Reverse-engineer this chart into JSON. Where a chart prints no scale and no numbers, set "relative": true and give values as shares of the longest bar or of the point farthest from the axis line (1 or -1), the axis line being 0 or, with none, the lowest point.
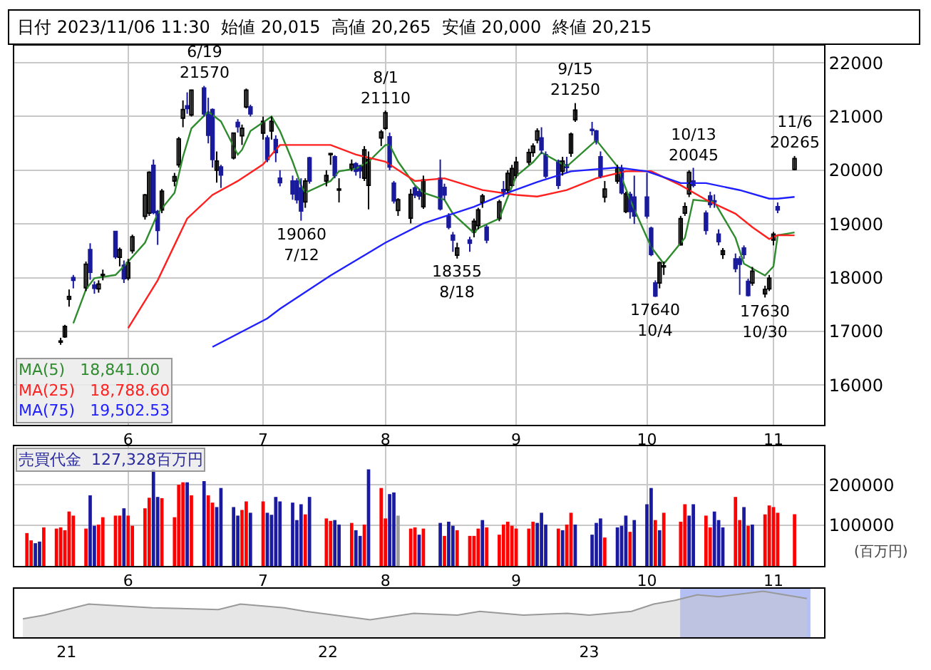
{
  "chart_data": [
    {
      "type": "candlestick",
      "title": "日付 2023/11/06 11:30  始値 20,015  高値 20,265  安値 20,000  終値 20,215",
      "x": [
        "2023-05-16",
        "2023-05-17",
        "2023-05-18",
        "2023-05-19",
        "2023-05-22",
        "2023-05-23",
        "2023-05-24",
        "2023-05-25",
        "2023-05-26",
        "2023-05-29",
        "2023-05-30",
        "2023-05-31",
        "2023-06-01",
        "2023-06-02",
        "2023-06-05",
        "2023-06-06",
        "2023-06-07",
        "2023-06-08",
        "2023-06-09",
        "2023-06-12",
        "2023-06-13",
        "2023-06-14",
        "2023-06-15",
        "2023-06-16",
        "2023-06-19",
        "2023-06-20",
        "2023-06-21",
        "2023-06-22",
        "2023-06-23",
        "2023-06-26",
        "2023-06-27",
        "2023-06-28",
        "2023-06-29",
        "2023-06-30",
        "2023-07-03",
        "2023-07-04",
        "2023-07-05",
        "2023-07-06",
        "2023-07-07",
        "2023-07-10",
        "2023-07-11",
        "2023-07-12",
        "2023-07-13",
        "2023-07-14",
        "2023-07-18",
        "2023-07-19",
        "2023-07-20",
        "2023-07-21",
        "2023-07-24",
        "2023-07-25",
        "2023-07-26",
        "2023-07-27",
        "2023-07-28",
        "2023-07-31",
        "2023-08-01",
        "2023-08-02",
        "2023-08-03",
        "2023-08-04",
        "2023-08-07",
        "2023-08-08",
        "2023-08-09",
        "2023-08-10",
        "2023-08-14",
        "2023-08-15",
        "2023-08-16",
        "2023-08-17",
        "2023-08-18",
        "2023-08-21",
        "2023-08-22",
        "2023-08-23",
        "2023-08-24",
        "2023-08-25",
        "2023-08-28",
        "2023-08-29",
        "2023-08-30",
        "2023-08-31",
        "2023-09-01",
        "2023-09-04",
        "2023-09-05",
        "2023-09-06",
        "2023-09-07",
        "2023-09-08",
        "2023-09-11",
        "2023-09-12",
        "2023-09-13",
        "2023-09-14",
        "2023-09-15",
        "2023-09-19",
        "2023-09-20",
        "2023-09-21",
        "2023-09-22",
        "2023-09-25",
        "2023-09-26",
        "2023-09-27",
        "2023-09-28",
        "2023-09-29",
        "2023-10-02",
        "2023-10-03",
        "2023-10-04",
        "2023-10-05",
        "2023-10-06",
        "2023-10-10",
        "2023-10-11",
        "2023-10-12",
        "2023-10-13",
        "2023-10-16",
        "2023-10-17",
        "2023-10-18",
        "2023-10-19",
        "2023-10-20",
        "2023-10-23",
        "2023-10-24",
        "2023-10-25",
        "2023-10-26",
        "2023-10-27",
        "2023-10-30",
        "2023-10-31",
        "2023-11-01",
        "2023-11-02",
        "2023-11-06"
      ],
      "ohlc": [
        [
          16800,
          16880,
          16750,
          16820
        ],
        [
          16900,
          17120,
          16880,
          17090
        ],
        [
          17600,
          17780,
          17460,
          17650
        ],
        [
          18000,
          18050,
          17800,
          17950
        ],
        [
          17810,
          18300,
          17750,
          18250
        ],
        [
          18520,
          18640,
          17960,
          18100
        ],
        [
          17860,
          17930,
          17700,
          17800
        ],
        [
          17790,
          17950,
          17720,
          17880
        ],
        [
          18040,
          18150,
          17950,
          18060
        ],
        [
          18860,
          18870,
          18350,
          18390
        ],
        [
          18380,
          18560,
          18210,
          18520
        ],
        [
          18230,
          18320,
          17900,
          17980
        ],
        [
          17990,
          18350,
          17950,
          18280
        ],
        [
          18500,
          18800,
          18450,
          18760
        ],
        [
          19140,
          19560,
          19080,
          19540
        ],
        [
          19200,
          19980,
          19150,
          19960
        ],
        [
          20090,
          20200,
          19180,
          19210
        ],
        [
          19230,
          19260,
          18610,
          18880
        ],
        [
          19260,
          19650,
          19200,
          19610
        ],
        [
          19800,
          19950,
          19700,
          19880
        ],
        [
          20100,
          20620,
          20050,
          20580
        ],
        [
          20970,
          21300,
          20800,
          21130
        ],
        [
          21200,
          21450,
          21050,
          21150
        ],
        [
          21030,
          21500,
          21000,
          21490
        ],
        [
          21530,
          21570,
          21000,
          21050
        ],
        [
          21040,
          21350,
          20500,
          20650
        ],
        [
          21130,
          21150,
          20050,
          20200
        ],
        [
          20000,
          20350,
          19770,
          20170
        ],
        [
          20060,
          20100,
          19670,
          19910
        ],
        [
          20230,
          20700,
          20200,
          20690
        ],
        [
          20890,
          20950,
          20700,
          20810
        ],
        [
          20640,
          20850,
          20470,
          20780
        ],
        [
          21180,
          21520,
          21150,
          21490
        ],
        [
          21180,
          21220,
          21000,
          21050
        ],
        [
          20690,
          21000,
          20570,
          20910
        ],
        [
          20600,
          20650,
          20150,
          20200
        ],
        [
          20730,
          21000,
          20570,
          20910
        ],
        [
          20570,
          20650,
          20150,
          20330
        ],
        [
          19850,
          20000,
          19700,
          19770
        ],
        [
          19800,
          19900,
          19450,
          19560
        ],
        [
          19800,
          19850,
          19380,
          19450
        ],
        [
          19670,
          19850,
          19060,
          19240
        ],
        [
          19410,
          19850,
          19300,
          19800
        ],
        [
          20230,
          20250,
          19750,
          19800
        ],
        [
          19800,
          20000,
          19700,
          19900
        ],
        [
          20290,
          20320,
          20100,
          20310
        ],
        [
          20250,
          20280,
          19850,
          19900
        ],
        [
          19630,
          19850,
          19400,
          19650
        ],
        [
          20030,
          20200,
          19980,
          20110
        ],
        [
          20120,
          20150,
          19900,
          19980
        ],
        [
          20080,
          20100,
          19850,
          19990
        ],
        [
          19850,
          20450,
          19800,
          20380
        ],
        [
          19720,
          20350,
          19270,
          20200
        ],
        [
          20600,
          20750,
          20450,
          20710
        ],
        [
          20780,
          21110,
          20750,
          21070
        ],
        [
          20620,
          20700,
          20000,
          20060
        ],
        [
          19760,
          19800,
          19380,
          19430
        ],
        [
          19250,
          19480,
          19150,
          19450
        ],
        [
          19110,
          19650,
          19010,
          19550
        ],
        [
          19670,
          19700,
          19480,
          19540
        ],
        [
          19600,
          19650,
          19450,
          19520
        ],
        [
          19320,
          19900,
          19280,
          19820
        ],
        [
          19850,
          20200,
          19250,
          19280
        ],
        [
          19680,
          19750,
          19450,
          19540
        ],
        [
          19140,
          19200,
          18900,
          18940
        ],
        [
          18790,
          18850,
          18480,
          18700
        ],
        [
          18420,
          18650,
          18355,
          18550
        ],
        [
          18700,
          18760,
          18480,
          18640
        ],
        [
          18850,
          19100,
          18750,
          19050
        ],
        [
          18970,
          19300,
          18900,
          19260
        ],
        [
          19400,
          19560,
          19300,
          19520
        ],
        [
          18940,
          18980,
          18640,
          18700
        ],
        [
          19100,
          19450,
          19050,
          19410
        ],
        [
          19640,
          19800,
          19500,
          19580
        ],
        [
          19630,
          20000,
          19580,
          19940
        ],
        [
          19720,
          20100,
          19700,
          20030
        ],
        [
          19900,
          20250,
          19850,
          20150
        ],
        [
          20150,
          20400,
          20100,
          20330
        ],
        [
          20330,
          20500,
          20250,
          20450
        ],
        [
          20560,
          20780,
          20500,
          20730
        ],
        [
          20600,
          20800,
          20300,
          20380
        ],
        [
          20290,
          20350,
          19850,
          19890
        ],
        [
          20170,
          20200,
          19650,
          19720
        ],
        [
          19980,
          20250,
          19900,
          20170
        ],
        [
          20100,
          20250,
          19950,
          20050
        ],
        [
          20320,
          20700,
          20250,
          20670
        ],
        [
          20940,
          21250,
          20900,
          21120
        ],
        [
          20760,
          20900,
          20650,
          20740
        ],
        [
          20730,
          20750,
          20480,
          20530
        ],
        [
          20250,
          20350,
          19850,
          19890
        ],
        [
          19500,
          19800,
          19400,
          19650
        ],
        [
          19800,
          20100,
          19750,
          20030
        ],
        [
          20030,
          20100,
          19550,
          19580
        ],
        [
          19230,
          19600,
          19200,
          19560
        ],
        [
          19550,
          19600,
          19100,
          19230
        ],
        [
          19500,
          19900,
          19000,
          19150
        ],
        [
          19500,
          19950,
          19100,
          19150
        ],
        [
          18920,
          18950,
          18400,
          18430
        ],
        [
          17900,
          17950,
          17640,
          17660
        ],
        [
          17900,
          18300,
          17800,
          18280
        ],
        [
          18200,
          18300,
          18050,
          18220
        ],
        [
          18610,
          19150,
          18600,
          19100
        ],
        [
          19200,
          19400,
          19150,
          19320
        ],
        [
          19560,
          20000,
          19500,
          19960
        ],
        [
          19800,
          20045,
          19680,
          19720
        ],
        [
          19200,
          19250,
          18800,
          18880
        ],
        [
          19520,
          19600,
          19300,
          19360
        ],
        [
          19430,
          19550,
          19300,
          19410
        ],
        [
          18810,
          18900,
          18600,
          18670
        ],
        [
          18430,
          18550,
          18350,
          18500
        ],
        [
          18350,
          18450,
          18100,
          18170
        ],
        [
          18350,
          18400,
          17680,
          18250
        ],
        [
          18550,
          18600,
          18350,
          18430
        ],
        [
          17930,
          17980,
          17650,
          17670
        ],
        [
          17900,
          18200,
          17850,
          18120
        ],
        [
          17700,
          17850,
          17630,
          17780
        ],
        [
          17790,
          18050,
          17750,
          17990
        ],
        [
          18700,
          18850,
          18600,
          18810
        ],
        [
          19320,
          19400,
          19200,
          19260
        ],
        [
          20015,
          20265,
          20000,
          20215
        ]
      ],
      "series": [
        {
          "name": "MA(5) 18,841.00",
          "type": "line",
          "color": "#2e8b2e",
          "x": [
            "2023-05-19",
            "2023-05-22",
            "2023-05-24",
            "2023-05-29",
            "2023-05-31",
            "2023-06-05",
            "2023-06-08",
            "2023-06-12",
            "2023-06-14",
            "2023-06-16",
            "2023-06-20",
            "2023-06-23",
            "2023-06-27",
            "2023-06-28",
            "2023-06-30",
            "2023-07-05",
            "2023-07-07",
            "2023-07-10",
            "2023-07-12",
            "2023-07-13",
            "2023-07-19",
            "2023-07-21",
            "2023-07-25",
            "2023-07-28",
            "2023-08-01",
            "2023-08-02",
            "2023-08-04",
            "2023-08-08",
            "2023-08-10",
            "2023-08-15",
            "2023-08-17",
            "2023-08-22",
            "2023-08-23",
            "2023-08-28",
            "2023-08-30",
            "2023-09-01",
            "2023-09-05",
            "2023-09-07",
            "2023-09-13",
            "2023-09-20",
            "2023-09-25",
            "2023-09-28",
            "2023-10-03",
            "2023-10-06",
            "2023-10-11",
            "2023-10-13",
            "2023-10-18",
            "2023-10-23",
            "2023-10-25",
            "2023-10-30",
            "2023-11-01",
            "2023-11-02",
            "2023-11-06"
          ],
          "values": [
            17150,
            17780,
            17990,
            18050,
            18210,
            18650,
            19190,
            19580,
            20250,
            20780,
            21090,
            20910,
            20290,
            20380,
            20730,
            21000,
            20730,
            20160,
            19720,
            19580,
            19800,
            19980,
            20030,
            20160,
            20470,
            20470,
            20160,
            19720,
            19580,
            19450,
            19190,
            18830,
            18920,
            19100,
            19500,
            19890,
            20150,
            20330,
            20070,
            20560,
            20070,
            19450,
            18570,
            18260,
            18740,
            19450,
            19410,
            18740,
            18260,
            18040,
            18210,
            18790,
            18841
          ]
        },
        {
          "name": "MA(25) 18,788.60",
          "type": "line",
          "color": "#ff2020",
          "x": [
            "2023-06-01",
            "2023-06-08",
            "2023-06-15",
            "2023-06-21",
            "2023-06-27",
            "2023-07-03",
            "2023-07-07",
            "2023-07-11",
            "2023-07-19",
            "2023-07-25",
            "2023-08-01",
            "2023-08-08",
            "2023-08-15",
            "2023-08-24",
            "2023-09-01",
            "2023-09-06",
            "2023-09-13",
            "2023-09-20",
            "2023-09-27",
            "2023-10-03",
            "2023-10-10",
            "2023-10-16",
            "2023-10-23",
            "2023-10-27",
            "2023-10-31",
            "2023-11-02",
            "2023-11-06"
          ],
          "values": [
            17060,
            17950,
            19100,
            19540,
            19800,
            20110,
            20470,
            20470,
            20470,
            20290,
            20160,
            19800,
            19850,
            19630,
            19540,
            19510,
            19630,
            19850,
            19980,
            19980,
            19720,
            19450,
            19190,
            18940,
            18720,
            18790,
            18788.6
          ]
        },
        {
          "name": "MA(75) 19,502.53",
          "type": "line",
          "color": "#2020ff",
          "x": [
            "2023-06-21",
            "2023-07-04",
            "2023-07-07",
            "2023-07-19",
            "2023-08-01",
            "2023-08-10",
            "2023-08-22",
            "2023-08-30",
            "2023-09-06",
            "2023-09-14",
            "2023-09-25",
            "2023-10-02",
            "2023-10-10",
            "2023-10-16",
            "2023-10-24",
            "2023-10-31",
            "2023-11-02",
            "2023-11-06"
          ],
          "values": [
            16710,
            17240,
            17420,
            18040,
            18650,
            19010,
            19320,
            19580,
            19780,
            19980,
            20050,
            19980,
            19760,
            19760,
            19630,
            19470,
            19470,
            19502.53
          ]
        }
      ],
      "annotations": [
        {
          "text": "6/19\n21570",
          "x": "2023-06-19",
          "y": 21570
        },
        {
          "text": "19060\n7/12",
          "x": "2023-07-12",
          "y": 19060
        },
        {
          "text": "8/1\n21110",
          "x": "2023-08-01",
          "y": 21110
        },
        {
          "text": "18355\n8/18",
          "x": "2023-08-18",
          "y": 18355
        },
        {
          "text": "9/15\n21250",
          "x": "2023-09-15",
          "y": 21250
        },
        {
          "text": "17640\n10/4",
          "x": "2023-10-04",
          "y": 17640
        },
        {
          "text": "10/13\n20045",
          "x": "2023-10-13",
          "y": 20045
        },
        {
          "text": "17630\n10/30",
          "x": "2023-10-30",
          "y": 17630
        },
        {
          "text": "11/6\n20265",
          "x": "2023-11-06",
          "y": 20265
        }
      ],
      "xlim": [
        "2023-05-05",
        "2023-11-13"
      ],
      "xticks": [
        {
          "value": "2023-06-01",
          "label": "6"
        },
        {
          "value": "2023-07-03",
          "label": "7"
        },
        {
          "value": "2023-08-01",
          "label": "8"
        },
        {
          "value": "2023-09-01",
          "label": "9"
        },
        {
          "value": "2023-10-02",
          "label": "10"
        },
        {
          "value": "2023-11-01",
          "label": "11"
        }
      ],
      "ylim": [
        15260,
        22320
      ],
      "yticks": [
        16000,
        17000,
        18000,
        19000,
        20000,
        21000,
        22000
      ],
      "grid": true,
      "legend": "bottom left"
    },
    {
      "type": "bar",
      "title": "売買代金  127,328百万円",
      "ylabel": "(百万円)",
      "x": [
        "2023-05-08",
        "2023-05-09",
        "2023-05-10",
        "2023-05-11",
        "2023-05-12",
        "2023-05-15",
        "2023-05-16",
        "2023-05-17",
        "2023-05-18",
        "2023-05-19",
        "2023-05-22",
        "2023-05-23",
        "2023-05-24",
        "2023-05-25",
        "2023-05-26",
        "2023-05-29",
        "2023-05-30",
        "2023-05-31",
        "2023-06-01",
        "2023-06-02",
        "2023-06-05",
        "2023-06-06",
        "2023-06-07",
        "2023-06-08",
        "2023-06-09",
        "2023-06-12",
        "2023-06-13",
        "2023-06-14",
        "2023-06-15",
        "2023-06-16",
        "2023-06-19",
        "2023-06-20",
        "2023-06-21",
        "2023-06-22",
        "2023-06-23",
        "2023-06-26",
        "2023-06-27",
        "2023-06-28",
        "2023-06-29",
        "2023-06-30",
        "2023-07-03",
        "2023-07-04",
        "2023-07-05",
        "2023-07-06",
        "2023-07-07",
        "2023-07-10",
        "2023-07-11",
        "2023-07-12",
        "2023-07-13",
        "2023-07-14",
        "2023-07-18",
        "2023-07-19",
        "2023-07-20",
        "2023-07-21",
        "2023-07-24",
        "2023-07-25",
        "2023-07-26",
        "2023-07-27",
        "2023-07-28",
        "2023-07-31",
        "2023-08-01",
        "2023-08-02",
        "2023-08-03",
        "2023-08-04",
        "2023-08-07",
        "2023-08-08",
        "2023-08-09",
        "2023-08-10",
        "2023-08-14",
        "2023-08-15",
        "2023-08-16",
        "2023-08-17",
        "2023-08-18",
        "2023-08-21",
        "2023-08-22",
        "2023-08-23",
        "2023-08-24",
        "2023-08-25",
        "2023-08-28",
        "2023-08-29",
        "2023-08-30",
        "2023-08-31",
        "2023-09-01",
        "2023-09-04",
        "2023-09-05",
        "2023-09-06",
        "2023-09-07",
        "2023-09-08",
        "2023-09-11",
        "2023-09-12",
        "2023-09-13",
        "2023-09-14",
        "2023-09-15",
        "2023-09-19",
        "2023-09-20",
        "2023-09-21",
        "2023-09-22",
        "2023-09-25",
        "2023-09-26",
        "2023-09-27",
        "2023-09-28",
        "2023-09-29",
        "2023-10-02",
        "2023-10-03",
        "2023-10-04",
        "2023-10-05",
        "2023-10-06",
        "2023-10-10",
        "2023-10-11",
        "2023-10-12",
        "2023-10-13",
        "2023-10-16",
        "2023-10-17",
        "2023-10-18",
        "2023-10-19",
        "2023-10-20",
        "2023-10-23",
        "2023-10-24",
        "2023-10-25",
        "2023-10-26",
        "2023-10-27",
        "2023-10-30",
        "2023-10-31",
        "2023-11-01",
        "2023-11-02",
        "2023-11-06"
      ],
      "values": [
        81000,
        63000,
        56000,
        60000,
        95000,
        92000,
        95000,
        88000,
        134000,
        124000,
        92000,
        174000,
        99000,
        102000,
        120000,
        124000,
        124000,
        142000,
        124000,
        99000,
        142000,
        168000,
        238000,
        170000,
        167000,
        120000,
        200000,
        206000,
        206000,
        174000,
        209000,
        174000,
        156000,
        145000,
        192000,
        145000,
        124000,
        138000,
        159000,
        131000,
        159000,
        131000,
        126000,
        170000,
        159000,
        156000,
        113000,
        152000,
        127000,
        170000,
        117000,
        111000,
        113000,
        102000,
        106000,
        88000,
        74000,
        102000,
        238000,
        192000,
        117000,
        177000,
        181000,
        124000,
        92000,
        95000,
        77000,
        92000,
        106000,
        74000,
        109000,
        99000,
        88000,
        74000,
        74000,
        92000,
        113000,
        95000,
        77000,
        102000,
        109000,
        99000,
        92000,
        92000,
        109000,
        106000,
        131000,
        102000,
        92000,
        88000,
        102000,
        131000,
        102000,
        77000,
        106000,
        117000,
        70000,
        95000,
        99000,
        124000,
        84000,
        113000,
        152000,
        192000,
        113000,
        88000,
        131000,
        109000,
        152000,
        124000,
        152000,
        124000,
        95000,
        134000,
        113000,
        95000,
        170000,
        113000,
        145000,
        99000,
        102000,
        127000,
        149000,
        145000,
        131000,
        127328
      ],
      "colors": [
        "#ff0000",
        "#ff0000",
        "#1a1aa0",
        "#1a1aa0",
        "#ff0000",
        "#ff0000",
        "#ff0000",
        "#ff0000",
        "#ff0000",
        "#ff0000",
        "#ff0000",
        "#1a1aa0",
        "#1a1aa0",
        "#ff0000",
        "#ff0000",
        "#ff0000",
        "#ff0000",
        "#1a1aa0",
        "#ff0000",
        "#ff0000",
        "#ff0000",
        "#ff0000",
        "#1a1aa0",
        "#1a1aa0",
        "#ff0000",
        "#ff0000",
        "#ff0000",
        "#ff0000",
        "#1a1aa0",
        "#ff0000",
        "#1a1aa0",
        "#ff0000",
        "#ff0000",
        "#1a1aa0",
        "#1a1aa0",
        "#1a1aa0",
        "#1a1aa0",
        "#ff0000",
        "#ff0000",
        "#1a1aa0",
        "#ff0000",
        "#1a1aa0",
        "#1a1aa0",
        "#1a1aa0",
        "#1a1aa0",
        "#1a1aa0",
        "#1a1aa0",
        "#1a1aa0",
        "#ff0000",
        "#1a1aa0",
        "#ff0000",
        "#ff0000",
        "#1a1aa0",
        "#1a1aa0",
        "#ff0000",
        "#1a1aa0",
        "#1a1aa0",
        "#ff0000",
        "#1a1aa0",
        "#ff0000",
        "#ff0000",
        "#1a1aa0",
        "#1a1aa0",
        "#999999",
        "#ff0000",
        "#ff0000",
        "#1a1aa0",
        "#ff0000",
        "#1a1aa0",
        "#ff0000",
        "#1a1aa0",
        "#1a1aa0",
        "#ff0000",
        "#ff0000",
        "#ff0000",
        "#ff0000",
        "#1a1aa0",
        "#ff0000",
        "#ff0000",
        "#ff0000",
        "#ff0000",
        "#ff0000",
        "#ff0000",
        "#ff0000",
        "#ff0000",
        "#1a1aa0",
        "#1a1aa0",
        "#1a1aa0",
        "#ff0000",
        "#1a1aa0",
        "#ff0000",
        "#ff0000",
        "#1a1aa0",
        "#1a1aa0",
        "#1a1aa0",
        "#1a1aa0",
        "#ff0000",
        "#1a1aa0",
        "#1a1aa0",
        "#1a1aa0",
        "#ff0000",
        "#1a1aa0",
        "#1a1aa0",
        "#1a1aa0",
        "#ff0000",
        "#1a1aa0",
        "#ff0000",
        "#ff0000",
        "#ff0000",
        "#1a1aa0",
        "#1a1aa0",
        "#ff0000",
        "#ff0000",
        "#1a1aa0",
        "#1a1aa0",
        "#1a1aa0",
        "#ff0000",
        "#ff0000",
        "#1a1aa0",
        "#ff0000",
        "#1a1aa0",
        "#ff0000",
        "#ff0000",
        "#ff0000",
        "#ff0000",
        "#ff0000"
      ],
      "xlim": [
        "2023-05-05",
        "2023-11-13"
      ],
      "xticks": [
        {
          "value": "2023-06-01",
          "label": "6"
        },
        {
          "value": "2023-07-03",
          "label": "7"
        },
        {
          "value": "2023-08-01",
          "label": "8"
        },
        {
          "value": "2023-09-01",
          "label": "9"
        },
        {
          "value": "2023-10-02",
          "label": "10"
        },
        {
          "value": "2023-11-01",
          "label": "11"
        }
      ],
      "ylim": [
        0,
        295000
      ],
      "yticks": [
        100000,
        200000
      ],
      "grid": true
    },
    {
      "type": "area",
      "relative": true,
      "color": "#999999",
      "x": [
        "2020-11",
        "2020-12",
        "2021-02",
        "2021-05",
        "2021-08",
        "2021-09",
        "2021-11",
        "2021-12",
        "2022-03",
        "2022-05",
        "2022-07",
        "2022-08",
        "2022-10",
        "2022-12",
        "2023-01",
        "2023-03",
        "2023-04",
        "2023-05",
        "2023-06",
        "2023-07",
        "2023-09",
        "2023-11"
      ],
      "values": [
        0.4,
        0.48,
        0.72,
        0.64,
        0.6,
        0.72,
        0.64,
        0.56,
        0.38,
        0.52,
        0.48,
        0.56,
        0.48,
        0.52,
        0.48,
        0.56,
        0.72,
        0.8,
        0.92,
        0.88,
        1,
        0.84
      ],
      "xlim": [
        "2020-10-20",
        "2023-11-25"
      ],
      "xticks": [
        {
          "value": "2021-01-01",
          "label": "21"
        },
        {
          "value": "2022-01-01",
          "label": "22"
        },
        {
          "value": "2023-01-01",
          "label": "23"
        }
      ],
      "bands": [
        {
          "axis": "x",
          "from": "2023-05-08",
          "to": "2023-11-06",
          "color": "#b4c0f4"
        }
      ]
    }
  ]
}
